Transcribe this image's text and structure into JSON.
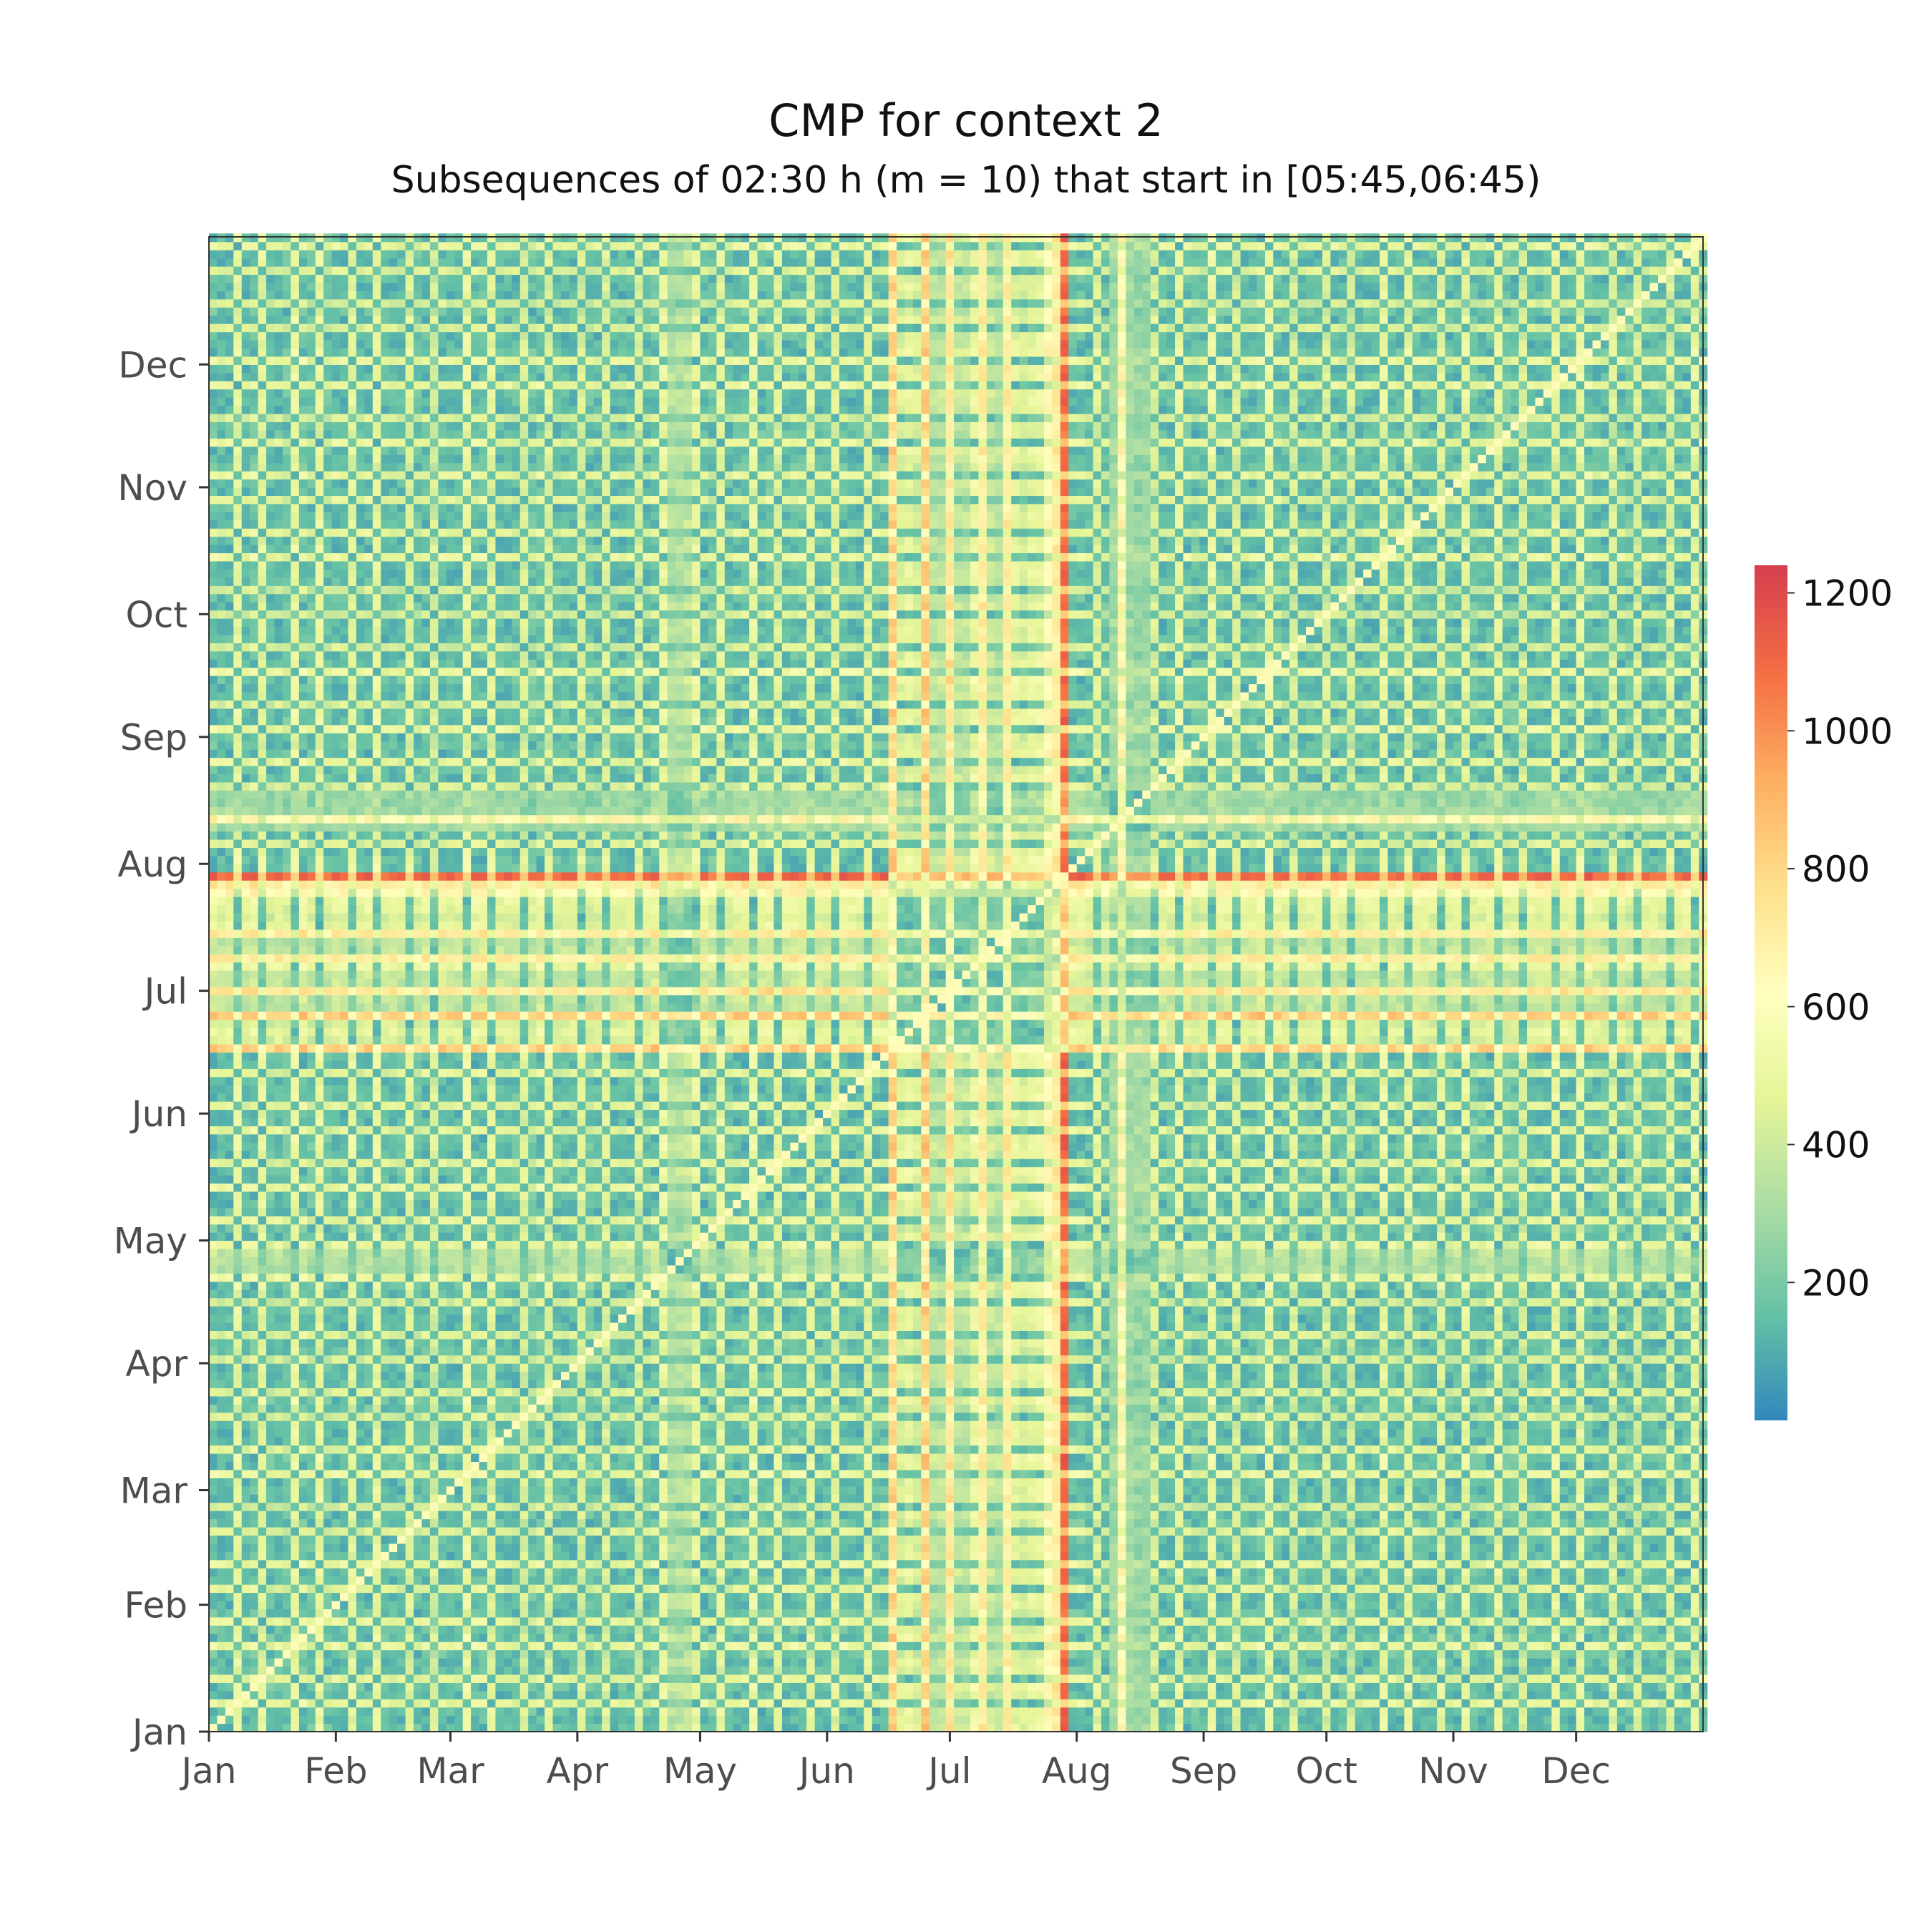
{
  "chart_data": {
    "type": "heatmap",
    "title": "CMP for context 2",
    "subtitle": "Subsequences of 02:30 h (m = 10) that start in [05:45,06:45)",
    "x_tick_labels": [
      "Jan",
      "Feb",
      "Mar",
      "Apr",
      "May",
      "Jun",
      "Jul",
      "Aug",
      "Sep",
      "Oct",
      "Nov",
      "Dec"
    ],
    "y_tick_labels": [
      "Jan",
      "Feb",
      "Mar",
      "Apr",
      "May",
      "Jun",
      "Jul",
      "Aug",
      "Sep",
      "Oct",
      "Nov",
      "Dec"
    ],
    "x_range": [
      "Jan",
      "Dec"
    ],
    "y_range": [
      "Jan",
      "Dec"
    ],
    "colorbar": {
      "ticks": [
        200,
        400,
        600,
        800,
        1000,
        1200
      ],
      "range": [
        0,
        1240
      ],
      "colormap": "Spectral_r",
      "colors": [
        "#3288bd",
        "#66c2a5",
        "#abdda4",
        "#e6f598",
        "#ffffbf",
        "#fee08b",
        "#fdae61",
        "#f46d43",
        "#d53e4f"
      ]
    },
    "features": {
      "diagonal": "near-zero distance (white/light) along main diagonal",
      "weekly_pattern": "periodic grid of high-distance bands every 7 days",
      "high_distance_days_columns": [
        "Jun-Jul",
        "late Jul"
      ],
      "high_distance_days_rows": [
        "late Jun - early Jul",
        "mid-late Jul",
        "late Apr"
      ]
    }
  }
}
